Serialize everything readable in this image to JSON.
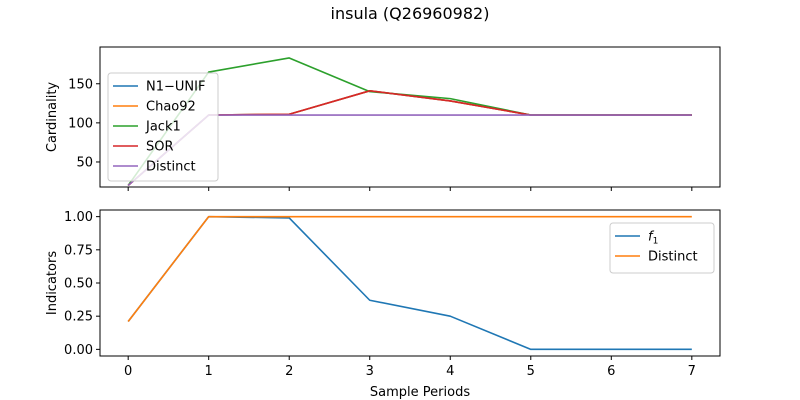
{
  "figure": {
    "title": "insula (Q26960982)"
  },
  "chart_data": [
    {
      "type": "line",
      "x": [
        0,
        1,
        2,
        3,
        4,
        5,
        6,
        7
      ],
      "xlim": [
        -0.35,
        7.35
      ],
      "ylim": [
        18,
        197
      ],
      "xlabel": "",
      "ylabel": "Cardinality",
      "yticks": [
        50,
        100,
        150
      ],
      "xticks": [
        0,
        1,
        2,
        3,
        4,
        5,
        6,
        7
      ],
      "show_xtick_labels": false,
      "grid": false,
      "legend_position": "center-left",
      "series": [
        {
          "name": "N1−UNIF",
          "color": "#1f77b4",
          "values": [
            20,
            110,
            111,
            141,
            128,
            110,
            110,
            110
          ]
        },
        {
          "name": "Chao92",
          "color": "#ff7f0e",
          "values": [
            20,
            110,
            111,
            141,
            128,
            110,
            110,
            110
          ]
        },
        {
          "name": "Jack1",
          "color": "#2ca02c",
          "values": [
            20,
            165,
            183,
            140,
            131,
            110,
            110,
            110
          ]
        },
        {
          "name": "SOR",
          "color": "#d62728",
          "values": [
            20,
            110,
            111,
            141,
            128,
            110,
            110,
            110
          ]
        },
        {
          "name": "Distinct",
          "color": "#9467bd",
          "values": [
            20,
            110,
            110,
            110,
            110,
            110,
            110,
            110
          ]
        }
      ]
    },
    {
      "type": "line",
      "x": [
        0,
        1,
        2,
        3,
        4,
        5,
        6,
        7
      ],
      "xlim": [
        -0.35,
        7.35
      ],
      "ylim": [
        -0.05,
        1.05
      ],
      "xlabel": "Sample Periods",
      "ylabel": "Indicators",
      "yticks": [
        0.0,
        0.25,
        0.5,
        0.75,
        1.0
      ],
      "ytick_labels": [
        "0.00",
        "0.25",
        "0.50",
        "0.75",
        "1.00"
      ],
      "xticks": [
        0,
        1,
        2,
        3,
        4,
        5,
        6,
        7
      ],
      "show_xtick_labels": true,
      "grid": false,
      "legend_position": "upper-right",
      "series": [
        {
          "name": "f",
          "name_subscript": "1",
          "color": "#1f77b4",
          "values": [
            0.21,
            1.0,
            0.99,
            0.37,
            0.25,
            0.0,
            0.0,
            0.0
          ]
        },
        {
          "name": "Distinct",
          "color": "#ff7f0e",
          "values": [
            0.21,
            1.0,
            1.0,
            1.0,
            1.0,
            1.0,
            1.0,
            1.0
          ]
        }
      ]
    }
  ]
}
